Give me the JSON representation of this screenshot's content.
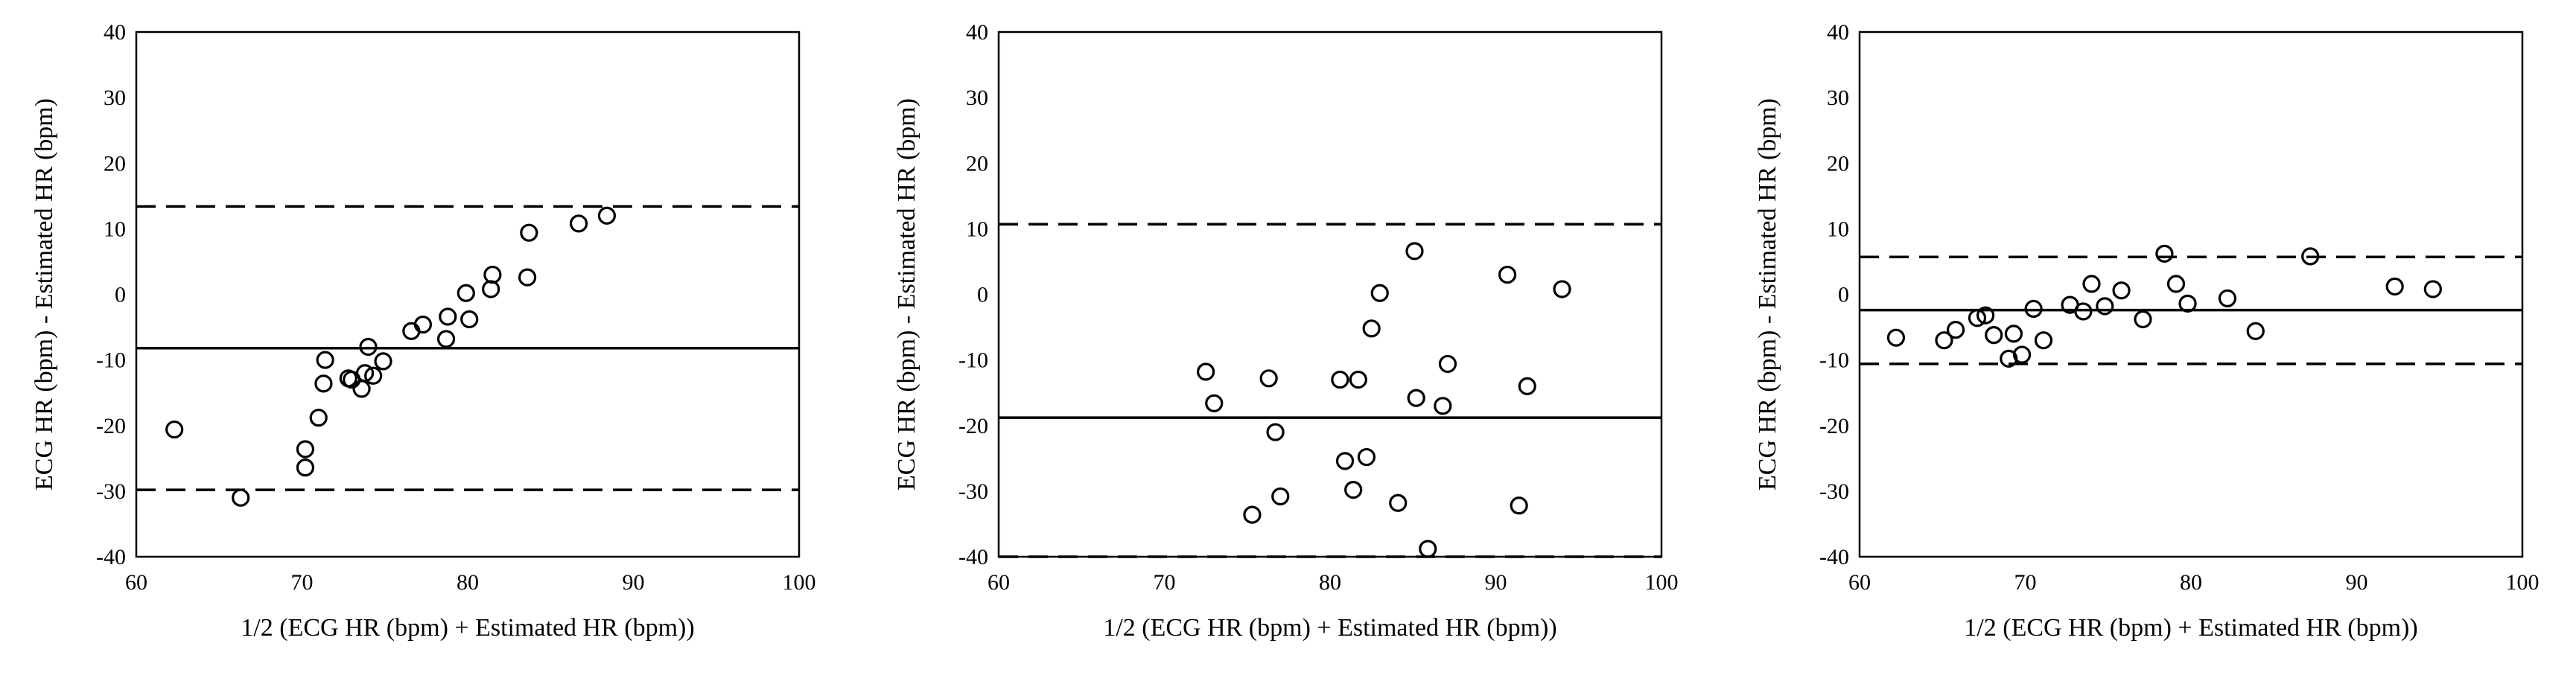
{
  "chart_data": [
    {
      "type": "scatter",
      "xlabel": "1/2 (ECG HR (bpm) + Estimated HR (bpm))",
      "ylabel": "ECG HR (bpm) - Estimated HR (bpm)",
      "xlim": [
        60,
        100
      ],
      "ylim": [
        -40,
        40
      ],
      "x_ticks": [
        "60",
        "70",
        "80",
        "90",
        "100"
      ],
      "y_ticks": [
        "40",
        "30",
        "20",
        "10",
        "0",
        "-10",
        "-20",
        "-30",
        "-40"
      ],
      "mean_difference": -8.2,
      "limits_of_agreement": [
        -29.8,
        13.4
      ],
      "points": [
        [
          62.3,
          -20.6
        ],
        [
          66.3,
          -31.0
        ],
        [
          70.2,
          -23.6
        ],
        [
          70.2,
          -26.4
        ],
        [
          71.0,
          -18.8
        ],
        [
          71.3,
          -13.6
        ],
        [
          71.4,
          -10.0
        ],
        [
          72.8,
          -12.8
        ],
        [
          73.0,
          -13.0
        ],
        [
          73.6,
          -14.4
        ],
        [
          73.8,
          -12.0
        ],
        [
          74.0,
          -8.0
        ],
        [
          74.3,
          -12.4
        ],
        [
          74.9,
          -10.2
        ],
        [
          76.6,
          -5.6
        ],
        [
          77.3,
          -4.6
        ],
        [
          78.7,
          -6.8
        ],
        [
          78.8,
          -3.4
        ],
        [
          79.9,
          0.2
        ],
        [
          80.1,
          -3.8
        ],
        [
          81.4,
          0.8
        ],
        [
          81.5,
          3.0
        ],
        [
          83.6,
          2.6
        ],
        [
          83.7,
          9.4
        ],
        [
          86.7,
          10.8
        ],
        [
          88.4,
          12.0
        ]
      ]
    },
    {
      "type": "scatter",
      "xlabel": "1/2 (ECG HR (bpm) + Estimated HR (bpm))",
      "ylabel": "ECG HR (bpm) - Estimated HR (bpm)",
      "xlim": [
        60,
        100
      ],
      "ylim": [
        -40,
        40
      ],
      "x_ticks": [
        "60",
        "70",
        "80",
        "90",
        "100"
      ],
      "y_ticks": [
        "40",
        "30",
        "20",
        "10",
        "0",
        "-10",
        "-20",
        "-30",
        "-40"
      ],
      "mean_difference": -18.8,
      "limits_of_agreement": [
        -40.0,
        10.7
      ],
      "points": [
        [
          72.5,
          -11.8
        ],
        [
          73.0,
          -16.6
        ],
        [
          75.3,
          -33.6
        ],
        [
          76.3,
          -12.8
        ],
        [
          76.7,
          -21.0
        ],
        [
          77.0,
          -30.8
        ],
        [
          80.6,
          -13.0
        ],
        [
          80.9,
          -25.4
        ],
        [
          81.4,
          -29.8
        ],
        [
          81.7,
          -13.0
        ],
        [
          82.2,
          -24.8
        ],
        [
          82.5,
          -5.2
        ],
        [
          83.0,
          0.2
        ],
        [
          84.1,
          -31.8
        ],
        [
          85.1,
          6.6
        ],
        [
          85.2,
          -15.8
        ],
        [
          85.9,
          -38.8
        ],
        [
          86.8,
          -17.0
        ],
        [
          87.1,
          -10.6
        ],
        [
          90.7,
          3.0
        ],
        [
          91.4,
          -32.2
        ],
        [
          91.9,
          -14.0
        ],
        [
          94.0,
          0.8
        ]
      ]
    },
    {
      "type": "scatter",
      "xlabel": "1/2 (ECG HR (bpm) + Estimated HR (bpm))",
      "ylabel": "ECG HR (bpm) - Estimated HR (bpm)",
      "xlim": [
        60,
        100
      ],
      "ylim": [
        -40,
        40
      ],
      "x_ticks": [
        "60",
        "70",
        "80",
        "90",
        "100"
      ],
      "y_ticks": [
        "40",
        "30",
        "20",
        "10",
        "0",
        "-10",
        "-20",
        "-30",
        "-40"
      ],
      "mean_difference": -2.4,
      "limits_of_agreement": [
        -10.6,
        5.7
      ],
      "points": [
        [
          62.2,
          -6.6
        ],
        [
          65.1,
          -7.0
        ],
        [
          65.8,
          -5.4
        ],
        [
          67.1,
          -3.6
        ],
        [
          67.6,
          -3.2
        ],
        [
          68.1,
          -6.2
        ],
        [
          69.0,
          -9.8
        ],
        [
          69.3,
          -6.0
        ],
        [
          69.8,
          -9.2
        ],
        [
          70.5,
          -2.2
        ],
        [
          71.1,
          -7.0
        ],
        [
          72.7,
          -1.6
        ],
        [
          73.5,
          -2.6
        ],
        [
          74.0,
          1.6
        ],
        [
          74.8,
          -1.8
        ],
        [
          75.8,
          0.6
        ],
        [
          77.1,
          -3.8
        ],
        [
          78.4,
          6.2
        ],
        [
          79.1,
          1.6
        ],
        [
          79.8,
          -1.4
        ],
        [
          82.2,
          -0.6
        ],
        [
          83.9,
          -5.6
        ],
        [
          87.2,
          5.8
        ],
        [
          92.3,
          1.2
        ],
        [
          94.6,
          0.8
        ]
      ]
    }
  ]
}
